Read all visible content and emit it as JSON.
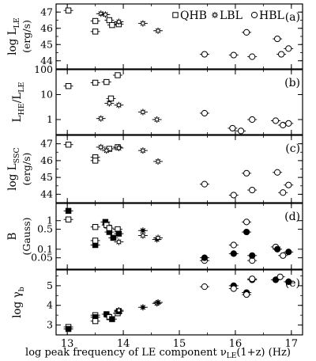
{
  "chart_data": [
    {
      "type": "scatter",
      "panel": "(a)",
      "ylabel_main": "log L",
      "ylabel_sub": "LE",
      "ylabel_unit": "(erg/s)",
      "ylim": [
        43.5,
        47.5
      ],
      "yticks": [
        44,
        45,
        46,
        47
      ],
      "legend": [
        {
          "name": "QHB",
          "marker": "square"
        },
        {
          "name": "LBL",
          "marker": "star"
        },
        {
          "name": "HBL",
          "marker": "circle"
        }
      ],
      "series": [
        {
          "name": "QHB",
          "points": [
            {
              "x": 13.02,
              "y": 47.1
            },
            {
              "x": 13.5,
              "y": 46.45
            },
            {
              "x": 13.5,
              "y": 45.8
            },
            {
              "x": 13.75,
              "y": 46.5
            },
            {
              "x": 13.8,
              "y": 46.2
            },
            {
              "x": 13.92,
              "y": 46.25
            }
          ]
        },
        {
          "name": "LBL",
          "points": [
            {
              "x": 13.6,
              "y": 46.9
            },
            {
              "x": 13.68,
              "y": 46.85
            },
            {
              "x": 13.92,
              "y": 46.4
            },
            {
              "x": 14.35,
              "y": 46.3
            },
            {
              "x": 14.62,
              "y": 45.85
            }
          ]
        },
        {
          "name": "HBL",
          "points": [
            {
              "x": 15.45,
              "y": 44.4
            },
            {
              "x": 15.97,
              "y": 44.35
            },
            {
              "x": 16.2,
              "y": 45.75
            },
            {
              "x": 16.3,
              "y": 44.25
            },
            {
              "x": 16.75,
              "y": 45.35
            },
            {
              "x": 16.82,
              "y": 44.4
            },
            {
              "x": 16.95,
              "y": 44.75
            }
          ]
        }
      ]
    },
    {
      "type": "scatter",
      "panel": "(b)",
      "ylabel_main": "L",
      "ylabel_sub": "HE",
      "ylabel_main2": "/L",
      "ylabel_sub2": "LE",
      "yscale": "log",
      "ylim": [
        0.25,
        100
      ],
      "yticks": [
        1,
        10,
        100
      ],
      "series": [
        {
          "name": "QHB",
          "points": [
            {
              "x": 13.02,
              "y": 22
            },
            {
              "x": 13.5,
              "y": 30
            },
            {
              "x": 13.7,
              "y": 32
            },
            {
              "x": 13.9,
              "y": 60
            },
            {
              "x": 13.78,
              "y": 7
            }
          ]
        },
        {
          "name": "LBL",
          "points": [
            {
              "x": 13.6,
              "y": 1.1
            },
            {
              "x": 13.75,
              "y": 4.5
            },
            {
              "x": 13.92,
              "y": 3.8
            },
            {
              "x": 14.35,
              "y": 2.0
            },
            {
              "x": 14.6,
              "y": 1.0
            }
          ]
        },
        {
          "name": "HBL",
          "points": [
            {
              "x": 15.45,
              "y": 1.8
            },
            {
              "x": 15.95,
              "y": 0.45
            },
            {
              "x": 16.1,
              "y": 0.35
            },
            {
              "x": 16.3,
              "y": 1.0
            },
            {
              "x": 16.72,
              "y": 0.9
            },
            {
              "x": 16.85,
              "y": 0.6
            },
            {
              "x": 16.95,
              "y": 0.7
            }
          ]
        }
      ]
    },
    {
      "type": "scatter",
      "panel": "(c)",
      "ylabel_main": "log L",
      "ylabel_sub": "SSC",
      "ylabel_unit": "(erg/s)",
      "ylim": [
        43.5,
        47.5
      ],
      "yticks": [
        44,
        45,
        46,
        47
      ],
      "series": [
        {
          "name": "QHB",
          "points": [
            {
              "x": 13.02,
              "y": 46.95
            },
            {
              "x": 13.5,
              "y": 46.2
            },
            {
              "x": 13.5,
              "y": 46.0
            },
            {
              "x": 13.75,
              "y": 46.7
            },
            {
              "x": 13.9,
              "y": 46.8
            }
          ]
        },
        {
          "name": "LBL",
          "points": [
            {
              "x": 13.6,
              "y": 46.8
            },
            {
              "x": 13.7,
              "y": 46.6
            },
            {
              "x": 13.92,
              "y": 46.75
            },
            {
              "x": 14.35,
              "y": 46.6
            },
            {
              "x": 14.62,
              "y": 45.95
            }
          ]
        },
        {
          "name": "HBL",
          "points": [
            {
              "x": 15.45,
              "y": 44.6
            },
            {
              "x": 15.97,
              "y": 43.95
            },
            {
              "x": 16.2,
              "y": 45.25
            },
            {
              "x": 16.3,
              "y": 44.25
            },
            {
              "x": 16.75,
              "y": 45.3
            },
            {
              "x": 16.85,
              "y": 44.1
            },
            {
              "x": 16.95,
              "y": 44.55
            }
          ]
        }
      ]
    },
    {
      "type": "scatter",
      "panel": "(d)",
      "ylabel_main": "B",
      "ylabel_unit": "(Gauss)",
      "yscale": "log",
      "ylim": [
        0.02,
        4
      ],
      "yticks": [
        0.05,
        0.1,
        0.5,
        1
      ],
      "yticklabels": [
        "0.05",
        "0.1",
        "0.5",
        "1"
      ],
      "series": [
        {
          "name": "QHB",
          "points": [
            {
              "x": 13.02,
              "y": 1.1
            },
            {
              "x": 13.02,
              "y": 2.2
            },
            {
              "x": 13.5,
              "y": 0.6
            },
            {
              "x": 13.5,
              "y": 0.14
            },
            {
              "x": 13.5,
              "y": 0.2
            },
            {
              "x": 13.68,
              "y": 0.9
            },
            {
              "x": 13.7,
              "y": 0.7
            },
            {
              "x": 13.75,
              "y": 0.4
            },
            {
              "x": 13.75,
              "y": 0.55
            },
            {
              "x": 13.82,
              "y": 0.25
            },
            {
              "x": 13.9,
              "y": 0.5
            },
            {
              "x": 13.92,
              "y": 0.35
            }
          ]
        },
        {
          "name": "LBL",
          "points": [
            {
              "x": 13.92,
              "y": 0.18
            },
            {
              "x": 14.35,
              "y": 0.45
            },
            {
              "x": 14.35,
              "y": 0.3
            },
            {
              "x": 14.6,
              "y": 0.22
            },
            {
              "x": 14.62,
              "y": 0.25
            }
          ]
        },
        {
          "name": "HBL",
          "points": [
            {
              "x": 15.45,
              "y": 0.04
            },
            {
              "x": 15.45,
              "y": 0.05
            },
            {
              "x": 15.97,
              "y": 0.14
            },
            {
              "x": 15.97,
              "y": 0.07
            },
            {
              "x": 16.2,
              "y": 0.9
            },
            {
              "x": 16.2,
              "y": 0.4
            },
            {
              "x": 16.3,
              "y": 0.04
            },
            {
              "x": 16.3,
              "y": 0.06
            },
            {
              "x": 16.72,
              "y": 0.12
            },
            {
              "x": 16.75,
              "y": 0.1
            },
            {
              "x": 16.85,
              "y": 0.06
            },
            {
              "x": 16.95,
              "y": 0.08
            }
          ]
        }
      ]
    },
    {
      "type": "scatter",
      "panel": "(e)",
      "ylabel_main": "log γ",
      "ylabel_sub": "b",
      "ylim": [
        2.5,
        5.8
      ],
      "yticks": [
        3,
        4,
        5
      ],
      "series": [
        {
          "name": "QHB",
          "points": [
            {
              "x": 13.02,
              "y": 2.9
            },
            {
              "x": 13.02,
              "y": 2.8
            },
            {
              "x": 13.5,
              "y": 3.5
            },
            {
              "x": 13.5,
              "y": 3.4
            },
            {
              "x": 13.5,
              "y": 3.2
            },
            {
              "x": 13.7,
              "y": 3.55
            },
            {
              "x": 13.75,
              "y": 3.4
            },
            {
              "x": 13.8,
              "y": 3.3
            },
            {
              "x": 13.9,
              "y": 3.6
            },
            {
              "x": 13.92,
              "y": 3.7
            }
          ]
        },
        {
          "name": "LBL",
          "points": [
            {
              "x": 13.92,
              "y": 3.75
            },
            {
              "x": 14.35,
              "y": 3.9
            },
            {
              "x": 14.6,
              "y": 4.1
            },
            {
              "x": 14.62,
              "y": 4.15
            }
          ]
        },
        {
          "name": "HBL",
          "points": [
            {
              "x": 15.45,
              "y": 4.95
            },
            {
              "x": 15.97,
              "y": 5.0
            },
            {
              "x": 15.97,
              "y": 4.85
            },
            {
              "x": 16.2,
              "y": 4.65
            },
            {
              "x": 16.2,
              "y": 4.55
            },
            {
              "x": 16.3,
              "y": 5.3
            },
            {
              "x": 16.3,
              "y": 5.35
            },
            {
              "x": 16.72,
              "y": 5.3
            },
            {
              "x": 16.8,
              "y": 5.45
            },
            {
              "x": 16.95,
              "y": 5.2
            }
          ]
        }
      ]
    }
  ],
  "axes": {
    "xlim": [
      12.8,
      17.2
    ],
    "xticks": [
      13,
      14,
      15,
      16,
      17
    ],
    "xticklabels": [
      "13",
      "14",
      "15",
      "16",
      "17"
    ],
    "xlabel": "log peak frequency of LE component",
    "xlabel_symbol": "ν",
    "xlabel_sub": "LE",
    "xlabel_tail": "(1+z)  (Hz)"
  }
}
